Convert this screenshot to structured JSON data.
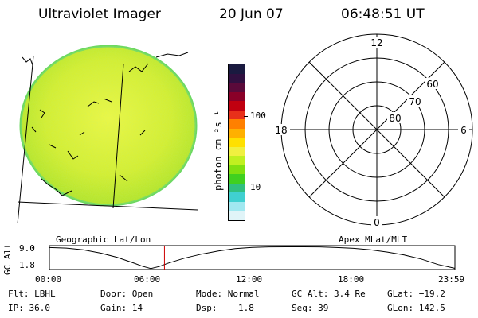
{
  "header": {
    "title": "Ultraviolet Imager",
    "date": "20 Jun 07",
    "time": "06:48:51 UT"
  },
  "globe_panel": {
    "caption": "Geographic Lat/Lon"
  },
  "colorbar": {
    "unit_label": "photon cm⁻²s⁻¹",
    "ticks": [
      "100",
      "10"
    ],
    "colors_top_to_bottom": [
      "#1a1a40",
      "#301040",
      "#5a0a3a",
      "#8a0028",
      "#c00010",
      "#e8301a",
      "#ff8000",
      "#ffb000",
      "#ffe000",
      "#f0f040",
      "#c0f020",
      "#80e010",
      "#40d020",
      "#30c080",
      "#40d0d0",
      "#a0e8f0",
      "#e0f4f8"
    ]
  },
  "polar_panel": {
    "caption": "Apex MLat/MLT",
    "mlt_labels": {
      "top": "12",
      "right": "6",
      "bottom": "0",
      "left": "18"
    },
    "lat_labels": [
      "60",
      "70",
      "80"
    ]
  },
  "altitude_plot": {
    "ylabel": "GC Alt",
    "y_ticks": [
      "9.0",
      "1.8"
    ],
    "x_ticks": [
      "00:00",
      "06:00",
      "12:00",
      "18:00",
      "23:59"
    ],
    "line_color": "#000000",
    "marker_color": "#cc0000"
  },
  "footer": {
    "row1": {
      "filter": "Flt: LBHL",
      "door": "Door: Open",
      "mode": "Mode: Normal",
      "gc_alt": "GC Alt: 3.4 Re",
      "glat": "GLat: −19.2"
    },
    "row2": {
      "ip": "IP: 36.0",
      "gain": "Gain: 14",
      "dsp": "Dsp:    1.8",
      "seq": "Seq: 39",
      "glon": "GLon: 142.5"
    }
  },
  "chart_data": {
    "type": "line",
    "title": "",
    "xlabel": "",
    "ylabel": "GC Alt",
    "x_ticks": [
      "00:00",
      "06:00",
      "12:00",
      "18:00",
      "23:59"
    ],
    "ylim": [
      1.8,
      9.0
    ],
    "series": [
      {
        "x": [
          0,
          1,
          2,
          3,
          4,
          5,
          5.5,
          6,
          6.5,
          7,
          8,
          9,
          10,
          11,
          12,
          13,
          14,
          15,
          16,
          17,
          18,
          19,
          20,
          21,
          22,
          23,
          23.98
        ],
        "y": [
          8.9,
          8.7,
          8.1,
          7.0,
          5.5,
          3.5,
          2.4,
          1.6,
          2.3,
          3.4,
          5.2,
          6.6,
          7.7,
          8.5,
          8.95,
          9.1,
          9.15,
          9.15,
          9.1,
          8.9,
          8.6,
          8.1,
          7.3,
          6.3,
          4.9,
          3.0,
          1.7
        ]
      }
    ],
    "marker_x": 6.81
  }
}
